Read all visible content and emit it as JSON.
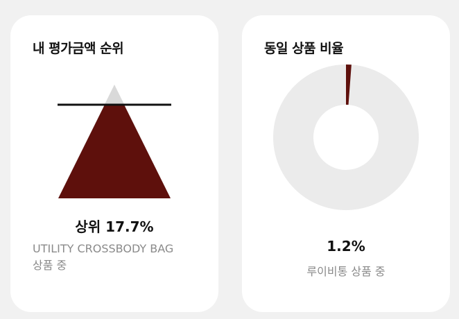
{
  "rank_card": {
    "title": "내 평가금액 순위",
    "rank_text": "상위 17.7%",
    "rank_percent": 17.7,
    "product_name": "UTILITY CROSSBODY BAG",
    "product_suffix": "상품 중"
  },
  "ratio_card": {
    "title": "동일 상품 비율",
    "ratio_text": "1.2%",
    "ratio_percent": 1.2,
    "caption": "루이비통 상품 중"
  },
  "colors": {
    "background": "#f1f1f1",
    "card": "#ffffff",
    "accent": "#5e100c",
    "track": "#ebebeb",
    "triangle_tip": "#d9d9d9",
    "marker_line": "#111111"
  }
}
